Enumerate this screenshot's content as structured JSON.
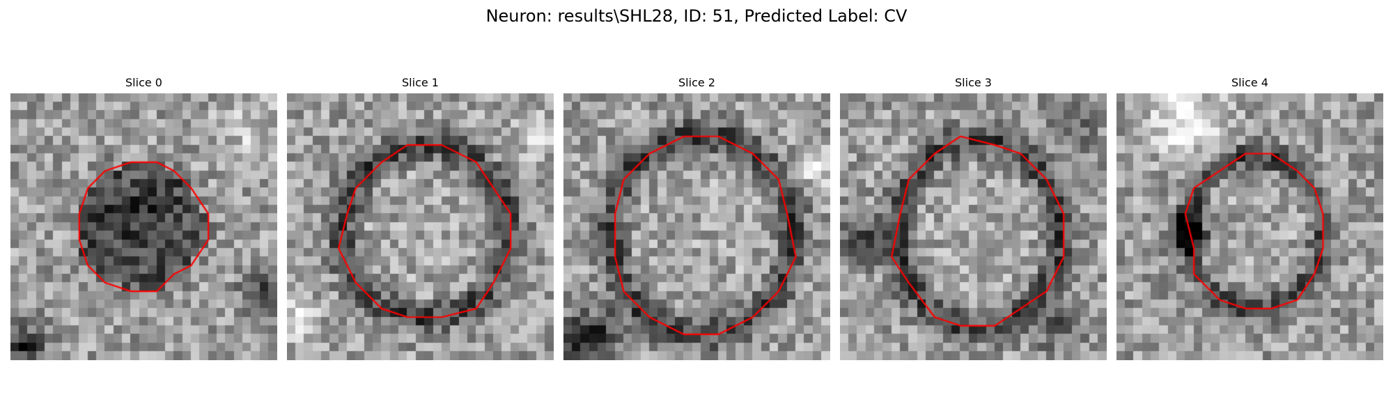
{
  "figure": {
    "title": "Neuron: results\\SHL28, ID: 51, Predicted Label: CV"
  },
  "panels": [
    {
      "title": "Slice 0",
      "seed": 11,
      "center": [
        0.49,
        0.5
      ],
      "radius": [
        0.24,
        0.24
      ],
      "ring": "filled-dark",
      "blobs": [
        [
          0.04,
          0.95,
          0.09,
          -0.45
        ],
        [
          0.95,
          0.72,
          0.08,
          -0.35
        ],
        [
          0.88,
          0.12,
          0.1,
          0.18
        ]
      ]
    },
    {
      "title": "Slice 1",
      "seed": 23,
      "center": [
        0.52,
        0.52
      ],
      "radius": [
        0.32,
        0.33
      ],
      "ring": "dark-ring",
      "blobs": [
        [
          0.03,
          0.85,
          0.08,
          0.28
        ],
        [
          0.92,
          0.15,
          0.1,
          0.15
        ]
      ]
    },
    {
      "title": "Slice 2",
      "seed": 37,
      "center": [
        0.52,
        0.53
      ],
      "radius": [
        0.35,
        0.38
      ],
      "ring": "dark-ring",
      "blobs": [
        [
          0.1,
          0.93,
          0.11,
          -0.5
        ],
        [
          0.94,
          0.28,
          0.08,
          0.2
        ]
      ]
    },
    {
      "title": "Slice 3",
      "seed": 53,
      "center": [
        0.52,
        0.53
      ],
      "radius": [
        0.31,
        0.36
      ],
      "ring": "dark-ring",
      "blobs": [
        [
          0.1,
          0.55,
          0.09,
          -0.35
        ],
        [
          0.88,
          0.1,
          0.1,
          -0.2
        ],
        [
          0.8,
          0.88,
          0.09,
          -0.25
        ]
      ]
    },
    {
      "title": "Slice 4",
      "seed": 71,
      "center": [
        0.52,
        0.52
      ],
      "radius": [
        0.26,
        0.29
      ],
      "ring": "dark-ring",
      "blobs": [
        [
          0.27,
          0.52,
          0.07,
          -0.6
        ],
        [
          0.25,
          0.1,
          0.14,
          0.3
        ]
      ]
    }
  ],
  "style": {
    "contour_color": "#ff0000"
  }
}
